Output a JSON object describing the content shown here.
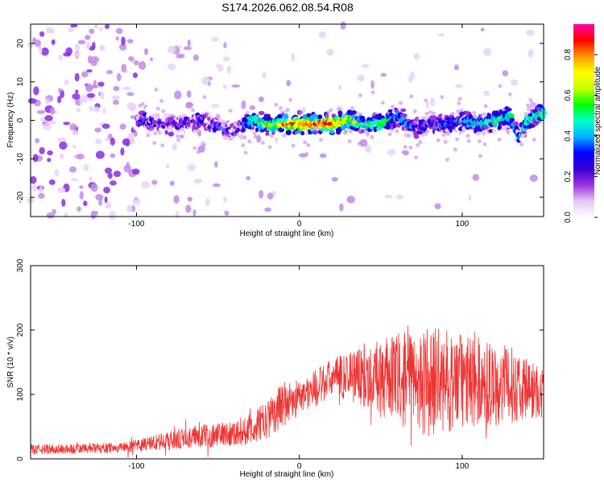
{
  "title": "S174.2026.062.08.54.R08",
  "chart_data": [
    {
      "type": "heatmap",
      "xlabel": "Height of straight line (km)",
      "ylabel": "Frequency (Hz)",
      "xlim": [
        -165,
        150
      ],
      "ylim": [
        -25,
        25
      ],
      "xticks": [
        -100,
        0,
        100
      ],
      "yticks": [
        -20,
        -10,
        0,
        10,
        20
      ],
      "colorbar": {
        "label": "Normalized spectral amplitude",
        "range": [
          0.0,
          0.95
        ],
        "ticks": [
          "0.0",
          "0.2",
          "0.4",
          "0.6",
          "0.8"
        ],
        "tick_values": [
          0.0,
          0.2,
          0.4,
          0.6,
          0.8
        ],
        "colors": [
          "#ffffff",
          "#e6c8f5",
          "#9b33e0",
          "#3a00d6",
          "#0000ff",
          "#00b4ff",
          "#00ffcc",
          "#00ff00",
          "#c8ff00",
          "#ffff00",
          "#ff9900",
          "#ff0000",
          "#ff00aa"
        ]
      },
      "ridge_x": [
        -100,
        -80,
        -60,
        -40,
        -30,
        -20,
        -10,
        0,
        10,
        20,
        30,
        40,
        50,
        60,
        70,
        80,
        90,
        100,
        110,
        120,
        130,
        135,
        140,
        150
      ],
      "ridge_freq": [
        0,
        -1,
        0,
        -3,
        0,
        -1,
        -1,
        -1,
        -1,
        -1,
        0,
        -1,
        -1,
        1,
        -2,
        -1,
        -1,
        0,
        -1,
        0,
        1,
        -5,
        0,
        2
      ],
      "ridge_amp": [
        0.25,
        0.2,
        0.25,
        0.15,
        0.45,
        0.6,
        0.8,
        0.85,
        0.9,
        0.85,
        0.7,
        0.5,
        0.6,
        0.4,
        0.3,
        0.25,
        0.3,
        0.35,
        0.45,
        0.5,
        0.5,
        0.35,
        0.5,
        0.5
      ]
    },
    {
      "type": "line",
      "xlabel": "Height of straight line (km)",
      "ylabel": "SNR (10 * v/v)",
      "xlim": [
        -165,
        150
      ],
      "ylim": [
        0,
        300
      ],
      "xticks": [
        -100,
        0,
        100
      ],
      "yticks": [
        0,
        100,
        200,
        300
      ],
      "color": "#ee3333",
      "envelope_x": [
        -165,
        -140,
        -110,
        -100,
        -90,
        -80,
        -60,
        -40,
        -30,
        -20,
        -10,
        0,
        10,
        20,
        30,
        40,
        50,
        60,
        70,
        80,
        90,
        100,
        110,
        120,
        130,
        140,
        150
      ],
      "envelope_mean": [
        15,
        15,
        18,
        20,
        25,
        28,
        35,
        40,
        45,
        60,
        85,
        95,
        110,
        125,
        130,
        130,
        125,
        125,
        120,
        120,
        120,
        120,
        120,
        115,
        115,
        110,
        100
      ],
      "envelope_spread": [
        8,
        8,
        8,
        10,
        12,
        15,
        18,
        20,
        25,
        30,
        35,
        30,
        30,
        30,
        40,
        50,
        60,
        70,
        80,
        85,
        80,
        75,
        70,
        65,
        60,
        50,
        40
      ]
    }
  ]
}
